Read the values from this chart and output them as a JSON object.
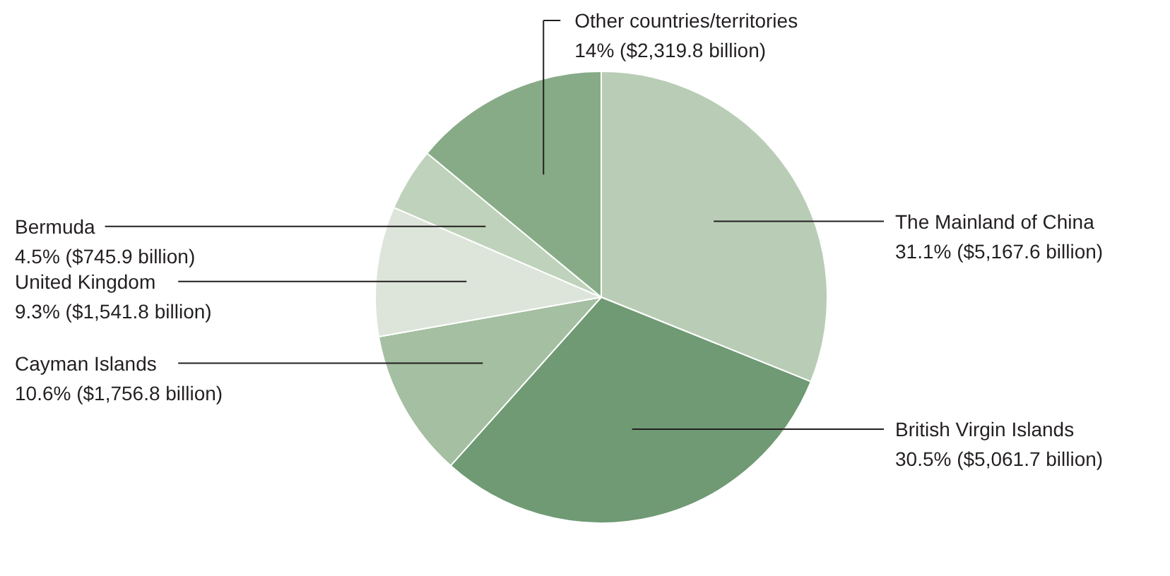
{
  "chart_data": {
    "type": "pie",
    "categories": [
      "The Mainland of China",
      "British Virgin Islands",
      "Cayman Islands",
      "United Kingdom",
      "Bermuda",
      "Other countries/territories"
    ],
    "values": [
      31.1,
      30.5,
      10.6,
      9.3,
      4.5,
      14
    ],
    "value_labels": [
      "31.1% ($5,167.6 billion)",
      "30.5% ($5,061.7 billion)",
      "10.6% ($1,756.8 billion)",
      "9.3% ($1,541.8 billion)",
      "4.5% ($745.9 billion)",
      "14% ($2,319.8 billion)"
    ],
    "colors": [
      "#b9cdb6",
      "#6f9a73",
      "#a4bfa1",
      "#dde5da",
      "#bfd2bb",
      "#87ab87"
    ]
  }
}
